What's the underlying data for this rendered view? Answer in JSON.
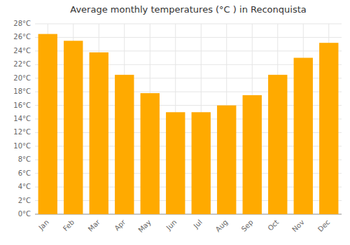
{
  "chart_data": {
    "type": "bar",
    "title": "Average monthly temperatures (°C ) in Reconquista",
    "categories": [
      "Jan",
      "Feb",
      "Mar",
      "Apr",
      "May",
      "Jun",
      "Jul",
      "Aug",
      "Sep",
      "Oct",
      "Nov",
      "Dec"
    ],
    "values": [
      26.5,
      25.5,
      23.8,
      20.5,
      17.8,
      15.0,
      15.0,
      16.0,
      17.5,
      20.5,
      23.0,
      25.2
    ],
    "color": "#FFAA00",
    "ylim": [
      0,
      28
    ],
    "yticks": [
      {
        "value": 0,
        "label": "0°C"
      },
      {
        "value": 2,
        "label": "2°C"
      },
      {
        "value": 4,
        "label": "4°C"
      },
      {
        "value": 6,
        "label": "6°C"
      },
      {
        "value": 8,
        "label": "8°C"
      },
      {
        "value": 10,
        "label": "10°C"
      },
      {
        "value": 12,
        "label": "12°C"
      },
      {
        "value": 14,
        "label": "14°C"
      },
      {
        "value": 16,
        "label": "16°C"
      },
      {
        "value": 18,
        "label": "18°C"
      },
      {
        "value": 20,
        "label": "20°C"
      },
      {
        "value": 22,
        "label": "22°C"
      },
      {
        "value": 24,
        "label": "24°C"
      },
      {
        "value": 26,
        "label": "26°C"
      },
      {
        "value": 28,
        "label": "28°C"
      }
    ],
    "grid": true
  }
}
